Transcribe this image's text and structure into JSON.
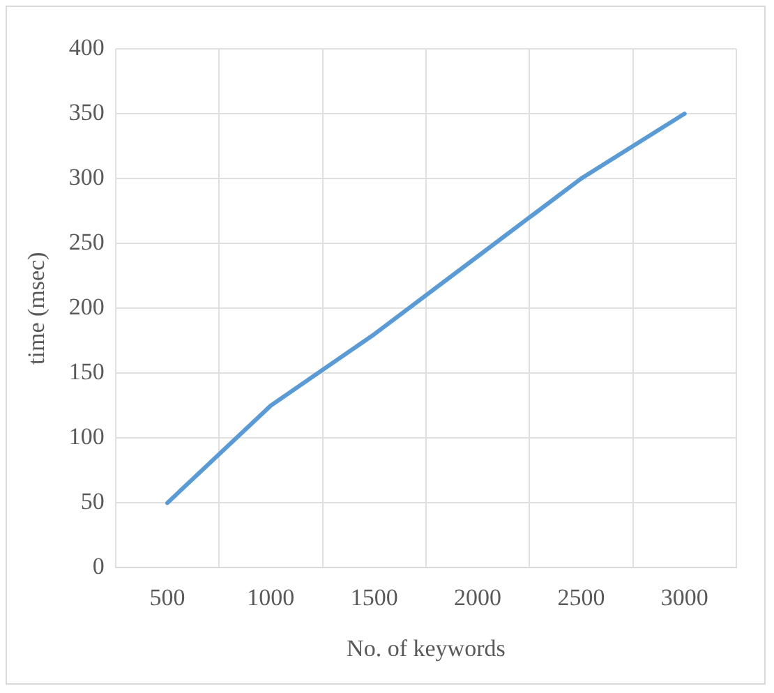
{
  "chart_data": {
    "type": "line",
    "xlabel": "No. of keywords",
    "ylabel": "time (msec)",
    "categories": [
      "500",
      "1000",
      "1500",
      "2000",
      "2500",
      "3000"
    ],
    "series": [
      {
        "color": "#5b9bd5",
        "values": [
          50,
          125,
          180,
          240,
          300,
          350
        ]
      }
    ],
    "ylim": [
      0,
      400
    ],
    "yticks": [
      0,
      50,
      100,
      150,
      200,
      250,
      300,
      350,
      400
    ],
    "grid": true,
    "legend": false,
    "marker": "none"
  }
}
